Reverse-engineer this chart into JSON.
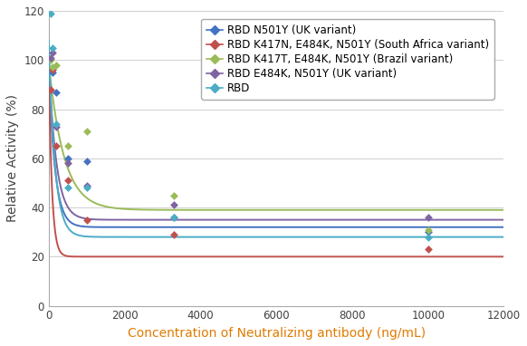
{
  "title": "",
  "xlabel": "Concentration of Neutralizing antibody (ng/mL)",
  "ylabel": "Relative Activity (%)",
  "xlim": [
    0,
    12000
  ],
  "ylim": [
    0,
    120
  ],
  "xticks": [
    0,
    2000,
    4000,
    6000,
    8000,
    10000,
    12000
  ],
  "yticks": [
    0,
    20,
    40,
    60,
    80,
    100,
    120
  ],
  "series": [
    {
      "label": "RBD N501Y (UK variant)",
      "color": "#4472C4",
      "scatter_x": [
        100,
        200,
        500,
        1000,
        3300,
        10000
      ],
      "scatter_y": [
        95,
        87,
        60,
        59,
        36,
        30
      ],
      "A": 65,
      "B": 32,
      "k": 0.006
    },
    {
      "label": "RBD K417N, E484K, N501Y (South Africa variant)",
      "color": "#C0504D",
      "scatter_x": [
        50,
        100,
        200,
        500,
        1000,
        3300,
        10000
      ],
      "scatter_y": [
        88,
        96,
        65,
        51,
        35,
        29,
        23
      ],
      "A": 80,
      "B": 20,
      "k": 0.012
    },
    {
      "label": "RBD K417T, E484K, N501Y (Brazil variant)",
      "color": "#9BBB59",
      "scatter_x": [
        50,
        100,
        200,
        500,
        1000,
        3300,
        10000
      ],
      "scatter_y": [
        100,
        97,
        98,
        65,
        71,
        45,
        31
      ],
      "A": 60,
      "B": 39,
      "k": 0.0025
    },
    {
      "label": "RBD E484K, N501Y (UK variant)",
      "color": "#8064A2",
      "scatter_x": [
        50,
        100,
        200,
        500,
        1000,
        3300,
        10000
      ],
      "scatter_y": [
        101,
        103,
        73,
        58,
        49,
        41,
        36
      ],
      "A": 65,
      "B": 35,
      "k": 0.005
    },
    {
      "label": "RBD",
      "color": "#4BACC6",
      "scatter_x": [
        50,
        100,
        200,
        500,
        1000,
        3300,
        10000
      ],
      "scatter_y": [
        119,
        105,
        74,
        48,
        48,
        36,
        28
      ],
      "A": 80,
      "B": 28,
      "k": 0.006
    }
  ],
  "legend_fontsize": 8.5,
  "axis_label_fontsize": 10,
  "tick_fontsize": 8.5,
  "xlabel_color": "#E07B00",
  "ylabel_color": "#404040",
  "tick_color": "#404040",
  "background_color": "#ffffff",
  "grid_color": "#d0d0d0"
}
